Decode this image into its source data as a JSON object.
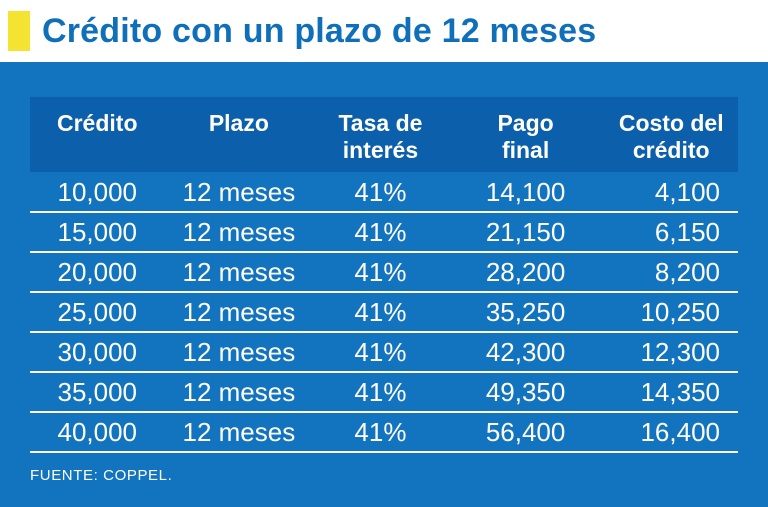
{
  "title": "Crédito con un plazo de 12 meses",
  "source": "FUENTE: COPPEL.",
  "colors": {
    "background_blue": "#1273BE",
    "header_band_blue": "#0B5FAB",
    "title_blue": "#0F6FB8",
    "accent_yellow": "#F4E431",
    "text_white": "#FFFFFF"
  },
  "chart_data": {
    "type": "table",
    "title": "Crédito con un plazo de 12 meses",
    "columns": [
      "Crédito",
      "Plazo",
      "Tasa de\ninterés",
      "Pago\nfinal",
      "Costo del\ncrédito"
    ],
    "rows": [
      [
        "10,000",
        "12 meses",
        "41%",
        "14,100",
        "4,100"
      ],
      [
        "15,000",
        "12 meses",
        "41%",
        "21,150",
        "6,150"
      ],
      [
        "20,000",
        "12 meses",
        "41%",
        "28,200",
        "8,200"
      ],
      [
        "25,000",
        "12 meses",
        "41%",
        "35,250",
        "10,250"
      ],
      [
        "30,000",
        "12 meses",
        "41%",
        "42,300",
        "12,300"
      ],
      [
        "35,000",
        "12 meses",
        "41%",
        "49,350",
        "14,350"
      ],
      [
        "40,000",
        "12 meses",
        "41%",
        "56,400",
        "16,400"
      ]
    ],
    "source": "FUENTE: COPPEL."
  }
}
